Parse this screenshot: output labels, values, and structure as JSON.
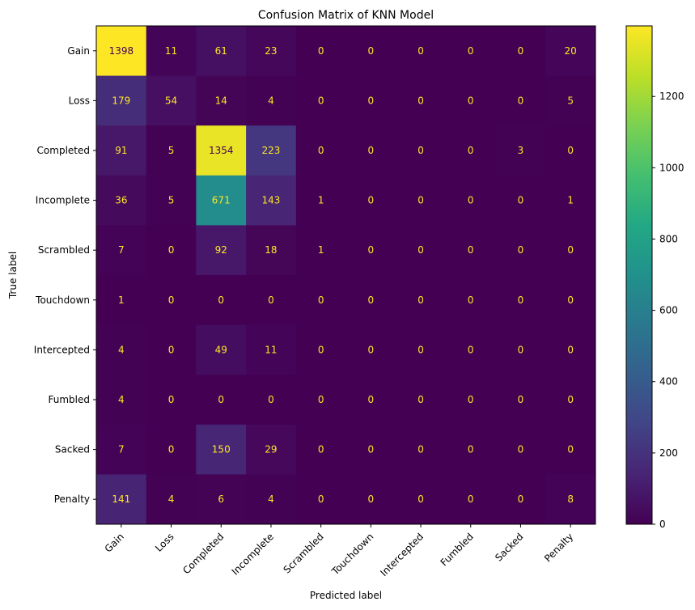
{
  "chart_data": {
    "type": "heatmap",
    "title": "Confusion Matrix of KNN Model",
    "xlabel": "Predicted label",
    "ylabel": "True label",
    "x_categories": [
      "Gain",
      "Loss",
      "Completed",
      "Incomplete",
      "Scrambled",
      "Touchdown",
      "Intercepted",
      "Fumbled",
      "Sacked",
      "Penalty"
    ],
    "y_categories": [
      "Gain",
      "Loss",
      "Completed",
      "Incomplete",
      "Scrambled",
      "Touchdown",
      "Intercepted",
      "Fumbled",
      "Sacked",
      "Penalty"
    ],
    "matrix": [
      [
        1398,
        11,
        61,
        23,
        0,
        0,
        0,
        0,
        0,
        20
      ],
      [
        179,
        54,
        14,
        4,
        0,
        0,
        0,
        0,
        0,
        5
      ],
      [
        91,
        5,
        1354,
        223,
        0,
        0,
        0,
        0,
        3,
        0
      ],
      [
        36,
        5,
        671,
        143,
        1,
        0,
        0,
        0,
        0,
        1
      ],
      [
        7,
        0,
        92,
        18,
        1,
        0,
        0,
        0,
        0,
        0
      ],
      [
        1,
        0,
        0,
        0,
        0,
        0,
        0,
        0,
        0,
        0
      ],
      [
        4,
        0,
        49,
        11,
        0,
        0,
        0,
        0,
        0,
        0
      ],
      [
        4,
        0,
        0,
        0,
        0,
        0,
        0,
        0,
        0,
        0
      ],
      [
        7,
        0,
        150,
        29,
        0,
        0,
        0,
        0,
        0,
        0
      ],
      [
        141,
        4,
        6,
        4,
        0,
        0,
        0,
        0,
        0,
        8
      ]
    ],
    "colormap": "viridis",
    "colorbar": {
      "range": [
        0,
        1398
      ],
      "ticks": [
        0,
        200,
        400,
        600,
        800,
        1000,
        1200
      ]
    },
    "text_color_light": "#fde725",
    "text_color_dark": "#440154",
    "x_tick_rotation": 45
  }
}
